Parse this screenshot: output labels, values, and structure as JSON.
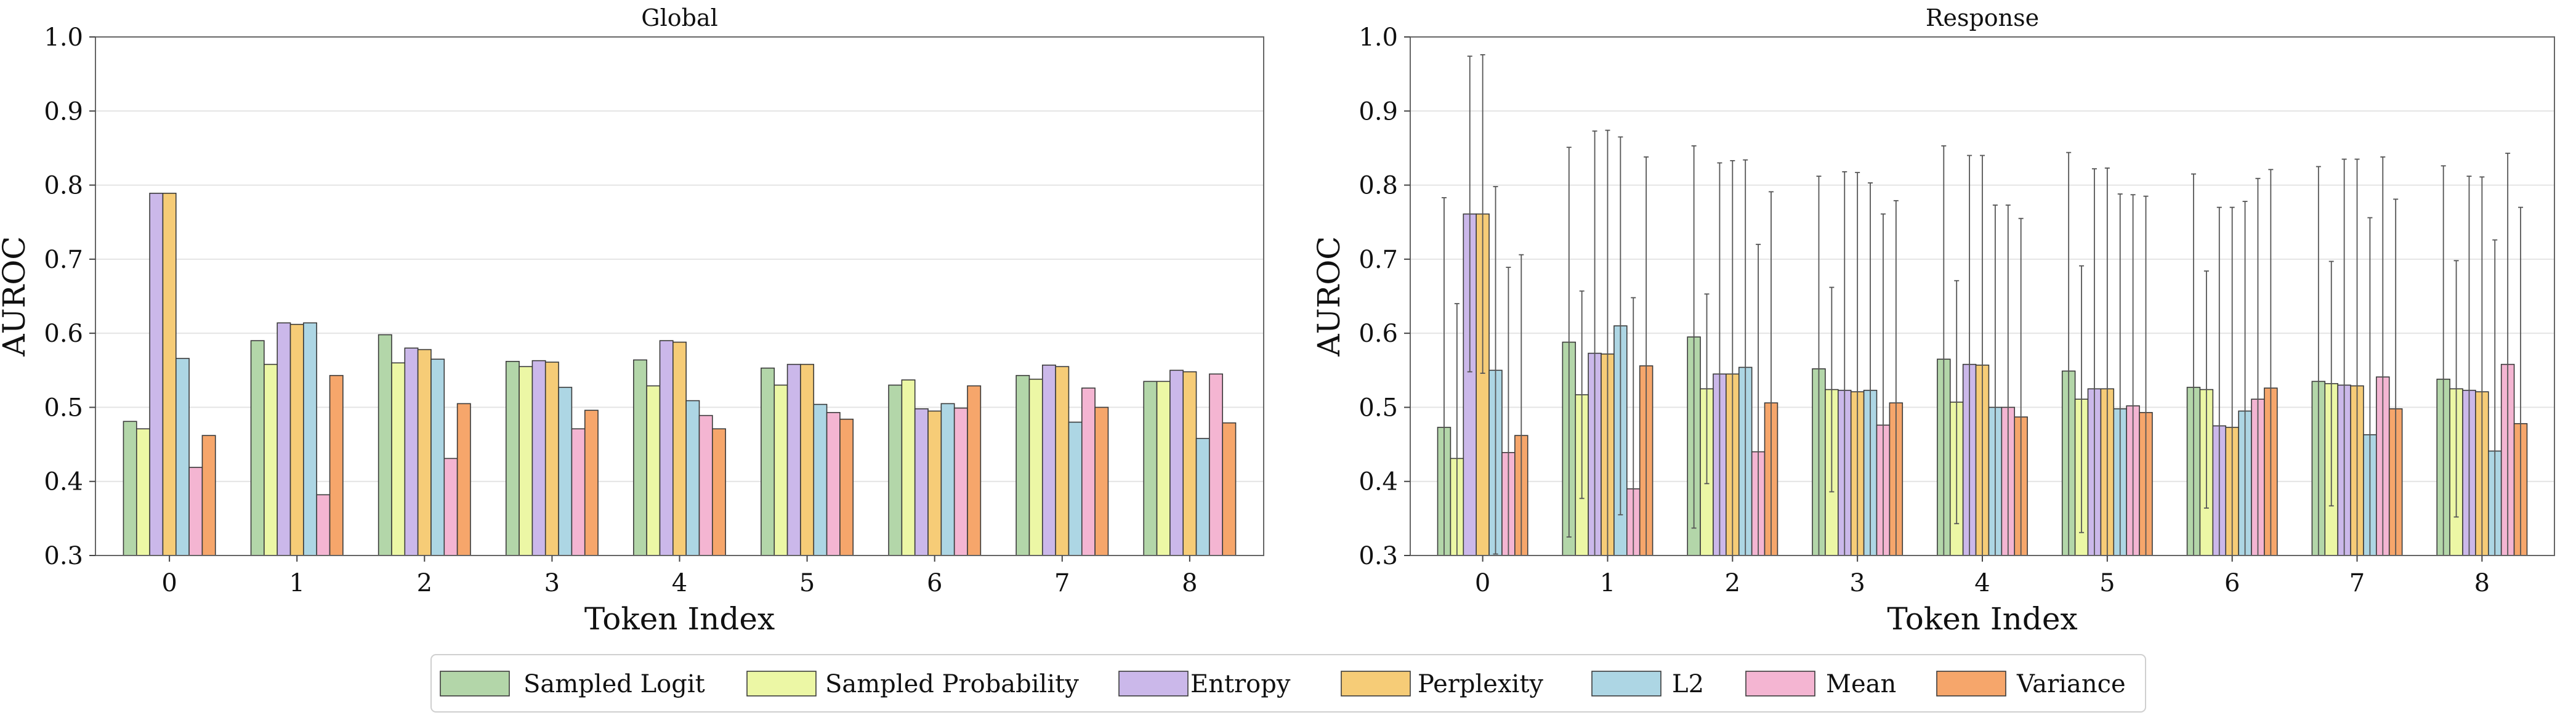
{
  "chart_data": [
    {
      "type": "bar",
      "title": "Global",
      "xlabel": "Token Index",
      "ylabel": "AUROC",
      "ylim": [
        0.3,
        1.0
      ],
      "yticks": [
        "0.3",
        "0.4",
        "0.5",
        "0.6",
        "0.7",
        "0.8",
        "0.9",
        "1.0"
      ],
      "grid": "horizontal",
      "categories": [
        "0",
        "1",
        "2",
        "3",
        "4",
        "5",
        "6",
        "7",
        "8"
      ],
      "series": [
        {
          "name": "Sampled Logit",
          "values": [
            0.481,
            0.59,
            0.598,
            0.562,
            0.564,
            0.553,
            0.53,
            0.543,
            0.535
          ]
        },
        {
          "name": "Sampled Probability",
          "values": [
            0.471,
            0.558,
            0.56,
            0.555,
            0.529,
            0.53,
            0.537,
            0.538,
            0.535
          ]
        },
        {
          "name": "Entropy",
          "values": [
            0.789,
            0.614,
            0.58,
            0.563,
            0.59,
            0.558,
            0.498,
            0.557,
            0.55
          ]
        },
        {
          "name": "Perplexity",
          "values": [
            0.789,
            0.612,
            0.578,
            0.561,
            0.588,
            0.558,
            0.495,
            0.555,
            0.548
          ]
        },
        {
          "name": "L2",
          "values": [
            0.566,
            0.614,
            0.565,
            0.527,
            0.509,
            0.504,
            0.505,
            0.48,
            0.458
          ]
        },
        {
          "name": "Mean",
          "values": [
            0.419,
            0.382,
            0.431,
            0.471,
            0.489,
            0.493,
            0.499,
            0.526,
            0.545
          ]
        },
        {
          "name": "Variance",
          "values": [
            0.462,
            0.543,
            0.505,
            0.496,
            0.471,
            0.484,
            0.529,
            0.5,
            0.479
          ]
        }
      ]
    },
    {
      "type": "bar",
      "title": "Response",
      "xlabel": "Token Index",
      "ylabel": "AUROC",
      "ylim": [
        0.3,
        1.0
      ],
      "yticks": [
        "0.3",
        "0.4",
        "0.5",
        "0.6",
        "0.7",
        "0.8",
        "0.9",
        "1.0"
      ],
      "grid": "horizontal",
      "error_bars": true,
      "categories": [
        "0",
        "1",
        "2",
        "3",
        "4",
        "5",
        "6",
        "7",
        "8"
      ],
      "series": [
        {
          "name": "Sampled Logit",
          "values": [
            0.473,
            0.588,
            0.595,
            0.552,
            0.565,
            0.549,
            0.527,
            0.535,
            0.538
          ],
          "errors": [
            0.31,
            0.263,
            0.258,
            0.26,
            0.288,
            0.295,
            0.288,
            0.29,
            0.288
          ]
        },
        {
          "name": "Sampled Probability",
          "values": [
            0.431,
            0.517,
            0.525,
            0.524,
            0.507,
            0.511,
            0.524,
            0.532,
            0.525
          ],
          "errors": [
            0.209,
            0.14,
            0.128,
            0.138,
            0.164,
            0.18,
            0.16,
            0.165,
            0.173
          ]
        },
        {
          "name": "Entropy",
          "values": [
            0.761,
            0.573,
            0.545,
            0.523,
            0.558,
            0.525,
            0.475,
            0.53,
            0.523
          ],
          "errors": [
            0.213,
            0.3,
            0.285,
            0.295,
            0.282,
            0.297,
            0.295,
            0.305,
            0.289
          ]
        },
        {
          "name": "Perplexity",
          "values": [
            0.761,
            0.572,
            0.545,
            0.521,
            0.557,
            0.525,
            0.473,
            0.529,
            0.521
          ],
          "errors": [
            0.215,
            0.302,
            0.288,
            0.296,
            0.283,
            0.298,
            0.297,
            0.306,
            0.29
          ]
        },
        {
          "name": "L2",
          "values": [
            0.55,
            0.61,
            0.554,
            0.523,
            0.5,
            0.498,
            0.495,
            0.463,
            0.441
          ],
          "errors": [
            0.248,
            0.255,
            0.28,
            0.28,
            0.273,
            0.29,
            0.283,
            0.293,
            0.285
          ]
        },
        {
          "name": "Mean",
          "values": [
            0.439,
            0.39,
            0.44,
            0.476,
            0.5,
            0.502,
            0.511,
            0.541,
            0.558
          ],
          "errors": [
            0.25,
            0.258,
            0.28,
            0.285,
            0.273,
            0.285,
            0.298,
            0.297,
            0.285
          ]
        },
        {
          "name": "Variance",
          "values": [
            0.462,
            0.556,
            0.506,
            0.506,
            0.487,
            0.493,
            0.526,
            0.498,
            0.478
          ],
          "errors": [
            0.244,
            0.282,
            0.285,
            0.273,
            0.268,
            0.292,
            0.295,
            0.283,
            0.292
          ]
        }
      ]
    }
  ],
  "legend": {
    "position": "bottom-center",
    "entries": [
      {
        "name": "Sampled Logit",
        "color": "#b3d6a9"
      },
      {
        "name": "Sampled Probability",
        "color": "#ecf7a5"
      },
      {
        "name": "Entropy",
        "color": "#cbb8ea"
      },
      {
        "name": "Perplexity",
        "color": "#f6cc77"
      },
      {
        "name": "L2",
        "color": "#add6e4"
      },
      {
        "name": "Mean",
        "color": "#f4b5d2"
      },
      {
        "name": "Variance",
        "color": "#f6a66b"
      }
    ]
  }
}
